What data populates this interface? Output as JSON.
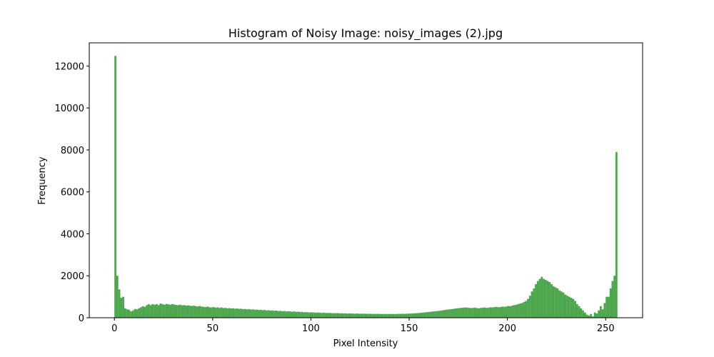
{
  "chart_data": {
    "type": "histogram",
    "title": "Histogram of Noisy Image: noisy_images (2).jpg",
    "xlabel": "Pixel Intensity",
    "ylabel": "Frequency",
    "color": "green",
    "alpha": 0.7,
    "bins": [
      0,
      1,
      2,
      3,
      4,
      5,
      6,
      7,
      8,
      9,
      10,
      11,
      12,
      13,
      14,
      15,
      16,
      17,
      18,
      19,
      20,
      21,
      22,
      23,
      24,
      25,
      26,
      27,
      28,
      29,
      30,
      31,
      32,
      33,
      34,
      35,
      36,
      37,
      38,
      39,
      40,
      41,
      42,
      43,
      44,
      45,
      46,
      47,
      48,
      49,
      50,
      51,
      52,
      53,
      54,
      55,
      56,
      57,
      58,
      59,
      60,
      61,
      62,
      63,
      64,
      65,
      66,
      67,
      68,
      69,
      70,
      71,
      72,
      73,
      74,
      75,
      76,
      77,
      78,
      79,
      80,
      81,
      82,
      83,
      84,
      85,
      86,
      87,
      88,
      89,
      90,
      91,
      92,
      93,
      94,
      95,
      96,
      97,
      98,
      99,
      100,
      101,
      102,
      103,
      104,
      105,
      106,
      107,
      108,
      109,
      110,
      111,
      112,
      113,
      114,
      115,
      116,
      117,
      118,
      119,
      120,
      121,
      122,
      123,
      124,
      125,
      126,
      127,
      128,
      129,
      130,
      131,
      132,
      133,
      134,
      135,
      136,
      137,
      138,
      139,
      140,
      141,
      142,
      143,
      144,
      145,
      146,
      147,
      148,
      149,
      150,
      151,
      152,
      153,
      154,
      155,
      156,
      157,
      158,
      159,
      160,
      161,
      162,
      163,
      164,
      165,
      166,
      167,
      168,
      169,
      170,
      171,
      172,
      173,
      174,
      175,
      176,
      177,
      178,
      179,
      180,
      181,
      182,
      183,
      184,
      185,
      186,
      187,
      188,
      189,
      190,
      191,
      192,
      193,
      194,
      195,
      196,
      197,
      198,
      199,
      200,
      201,
      202,
      203,
      204,
      205,
      206,
      207,
      208,
      209,
      210,
      211,
      212,
      213,
      214,
      215,
      216,
      217,
      218,
      219,
      220,
      221,
      222,
      223,
      224,
      225,
      226,
      227,
      228,
      229,
      230,
      231,
      232,
      233,
      234,
      235,
      236,
      237,
      238,
      239,
      240,
      241,
      242,
      243,
      244,
      245,
      246,
      247,
      248,
      249,
      250,
      251,
      252,
      253,
      254,
      255,
      256
    ],
    "counts": [
      12480,
      2000,
      1350,
      950,
      1000,
      450,
      400,
      380,
      300,
      350,
      420,
      400,
      450,
      500,
      550,
      520,
      600,
      650,
      600,
      650,
      620,
      650,
      600,
      680,
      650,
      620,
      660,
      640,
      620,
      650,
      630,
      610,
      600,
      620,
      590,
      600,
      580,
      590,
      570,
      560,
      580,
      550,
      540,
      560,
      530,
      520,
      510,
      530,
      500,
      490,
      510,
      480,
      500,
      470,
      490,
      460,
      470,
      450,
      460,
      440,
      450,
      430,
      440,
      420,
      430,
      410,
      420,
      400,
      410,
      390,
      400,
      380,
      390,
      370,
      380,
      360,
      370,
      350,
      360,
      340,
      350,
      330,
      340,
      320,
      330,
      310,
      320,
      300,
      310,
      300,
      290,
      300,
      280,
      290,
      270,
      280,
      260,
      270,
      260,
      250,
      260,
      250,
      240,
      250,
      240,
      230,
      240,
      230,
      225,
      230,
      220,
      220,
      215,
      220,
      210,
      215,
      205,
      210,
      200,
      205,
      200,
      200,
      195,
      200,
      190,
      195,
      190,
      190,
      185,
      190,
      185,
      180,
      185,
      180,
      185,
      180,
      175,
      180,
      175,
      180,
      175,
      180,
      175,
      180,
      185,
      180,
      190,
      185,
      190,
      195,
      200,
      200,
      210,
      215,
      220,
      230,
      240,
      250,
      260,
      270,
      280,
      290,
      300,
      310,
      320,
      330,
      345,
      360,
      380,
      390,
      400,
      410,
      420,
      440,
      450,
      460,
      470,
      480,
      490,
      480,
      470,
      460,
      470,
      480,
      460,
      450,
      470,
      480,
      490,
      470,
      480,
      500,
      490,
      510,
      520,
      500,
      510,
      530,
      520,
      540,
      560,
      550,
      580,
      600,
      620,
      650,
      680,
      700,
      750,
      800,
      900,
      1050,
      1250,
      1400,
      1600,
      1750,
      1850,
      1950,
      1850,
      1800,
      1750,
      1700,
      1600,
      1500,
      1450,
      1400,
      1300,
      1250,
      1200,
      1100,
      1050,
      1000,
      950,
      900,
      800,
      650,
      550,
      450,
      350,
      250,
      150,
      100,
      180,
      60,
      250,
      200,
      350,
      550,
      400,
      700,
      1000,
      1000,
      1400,
      1750,
      2000,
      7900
    ],
    "xlim": [
      -12.8,
      268.8
    ],
    "xticks": [
      0,
      50,
      100,
      150,
      200,
      250
    ],
    "ylim": [
      0,
      13104
    ],
    "yticks": [
      0,
      2000,
      4000,
      6000,
      8000,
      10000,
      12000
    ]
  }
}
